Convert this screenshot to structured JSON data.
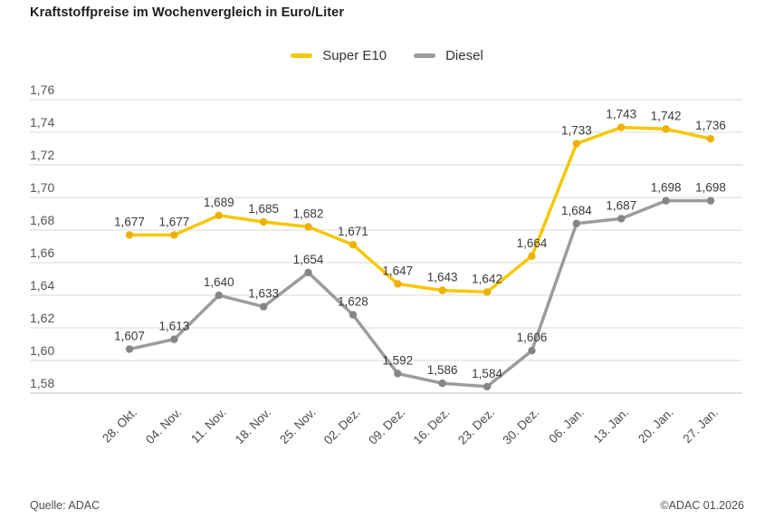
{
  "header": {
    "title": "Kraftstoffpreise im Wochenvergleich in Euro/Liter"
  },
  "legend": {
    "items": [
      {
        "label": "Super E10",
        "color": "#F6C700"
      },
      {
        "label": "Diesel",
        "color": "#9C9C9C"
      }
    ]
  },
  "chart_data": {
    "type": "line",
    "title": "Kraftstoffpreise im Wochenvergleich in Euro/Liter",
    "unit": "Euro/Liter",
    "categories": [
      "28. Okt.",
      "04. Nov.",
      "11. Nov.",
      "18. Nov.",
      "25. Nov.",
      "02. Dez.",
      "09. Dez.",
      "16. Dez.",
      "23. Dez.",
      "30. Dez.",
      "06. Jan.",
      "13. Jan.",
      "20. Jan.",
      "27. Jan."
    ],
    "series": [
      {
        "name": "Super E10",
        "color": "#F6C700",
        "marker_color": "#EFB100",
        "values": [
          1.677,
          1.677,
          1.689,
          1.685,
          1.682,
          1.671,
          1.647,
          1.643,
          1.642,
          1.664,
          1.733,
          1.743,
          1.742,
          1.736
        ],
        "labels": [
          "1,677",
          "1,677",
          "1,689",
          "1,685",
          "1,682",
          "1,671",
          "1,647",
          "1,643",
          "1,642",
          "1,664",
          "1,733",
          "1,743",
          "1,742",
          "1,736"
        ]
      },
      {
        "name": "Diesel",
        "color": "#9C9C9C",
        "marker_color": "#868686",
        "values": [
          1.607,
          1.613,
          1.64,
          1.633,
          1.654,
          1.628,
          1.592,
          1.586,
          1.584,
          1.606,
          1.684,
          1.687,
          1.698,
          1.698
        ],
        "labels": [
          "1,607",
          "1,613",
          "1,640",
          "1,633",
          "1,654",
          "1,628",
          "1,592",
          "1,586",
          "1,584",
          "1,606",
          "1,684",
          "1,687",
          "1,698",
          "1,698"
        ]
      }
    ],
    "ylim": [
      1.58,
      1.76
    ],
    "ytick_step": 0.02,
    "ytick_labels": [
      "1,76",
      "1,74",
      "1,72",
      "1,70",
      "1,68",
      "1,66",
      "1,64",
      "1,62",
      "1,60",
      "1,58"
    ],
    "decimal_separator": "comma",
    "grid": "horizontal",
    "legend_position": "top-center",
    "x_label_rotation": -45
  },
  "footer": {
    "source": "Quelle: ADAC",
    "copyright": "©ADAC 01.2026"
  }
}
